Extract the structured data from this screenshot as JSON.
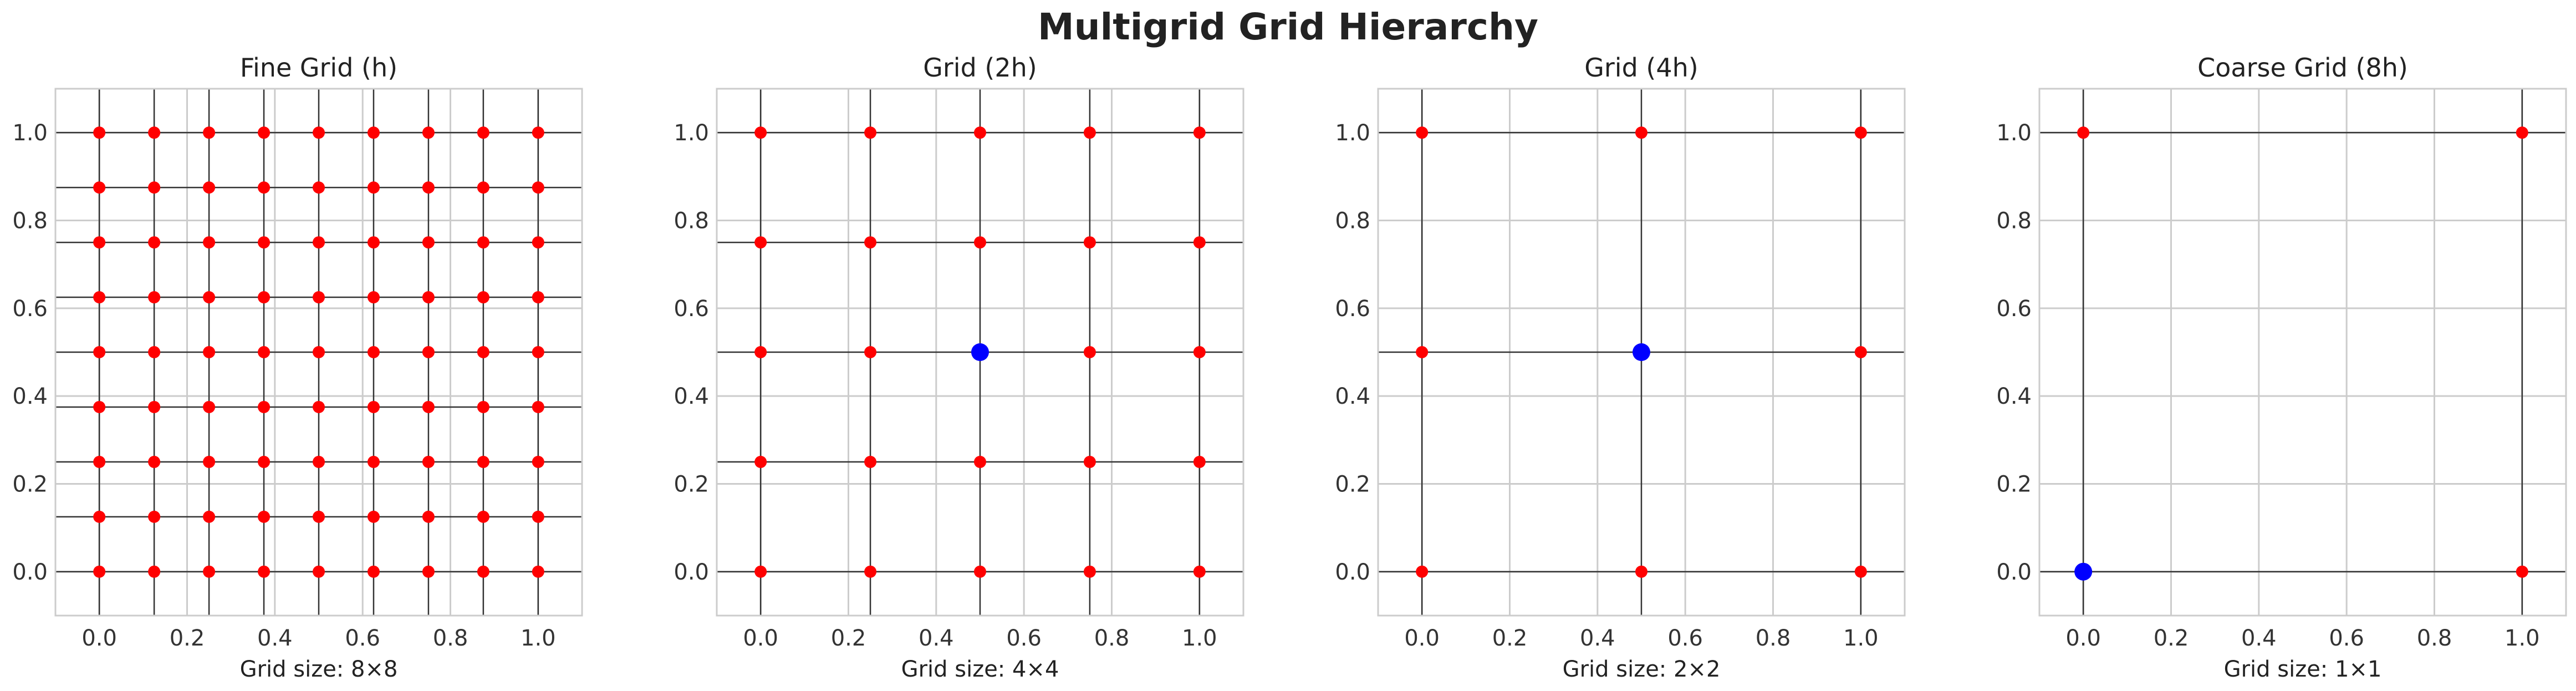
{
  "title": "Multigrid Grid Hierarchy",
  "colors": {
    "fine_point": "#ff0000",
    "coarse_point": "#0000ff",
    "grid_line": "#333333",
    "background_grid": "#cccccc",
    "frame": "#cccccc"
  },
  "chart_data": [
    {
      "type": "scatter",
      "title": "Fine Grid (h)",
      "xlabel": "Grid size: 8×8",
      "ylabel": "",
      "xlim": [
        -0.1,
        1.1
      ],
      "ylim": [
        -0.1,
        1.1
      ],
      "xticks": [
        "0.0",
        "0.2",
        "0.4",
        "0.6",
        "0.8",
        "1.0"
      ],
      "yticks": [
        "0.0",
        "0.2",
        "0.4",
        "0.6",
        "0.8",
        "1.0"
      ],
      "grid": true,
      "grid_coords": [
        0,
        0.125,
        0.25,
        0.375,
        0.5,
        0.625,
        0.75,
        0.875,
        1.0
      ],
      "highlight_points": []
    },
    {
      "type": "scatter",
      "title": "Grid (2h)",
      "xlabel": "Grid size: 4×4",
      "ylabel": "",
      "xlim": [
        -0.1,
        1.1
      ],
      "ylim": [
        -0.1,
        1.1
      ],
      "xticks": [
        "0.0",
        "0.2",
        "0.4",
        "0.6",
        "0.8",
        "1.0"
      ],
      "yticks": [
        "0.0",
        "0.2",
        "0.4",
        "0.6",
        "0.8",
        "1.0"
      ],
      "grid": true,
      "grid_coords": [
        0,
        0.25,
        0.5,
        0.75,
        1.0
      ],
      "highlight_points": [
        [
          0.5,
          0.5
        ]
      ]
    },
    {
      "type": "scatter",
      "title": "Grid (4h)",
      "xlabel": "Grid size: 2×2",
      "ylabel": "",
      "xlim": [
        -0.1,
        1.1
      ],
      "ylim": [
        -0.1,
        1.1
      ],
      "xticks": [
        "0.0",
        "0.2",
        "0.4",
        "0.6",
        "0.8",
        "1.0"
      ],
      "yticks": [
        "0.0",
        "0.2",
        "0.4",
        "0.6",
        "0.8",
        "1.0"
      ],
      "grid": true,
      "grid_coords": [
        0,
        0.5,
        1.0
      ],
      "highlight_points": [
        [
          0.5,
          0.5
        ]
      ]
    },
    {
      "type": "scatter",
      "title": "Coarse Grid (8h)",
      "xlabel": "Grid size: 1×1",
      "ylabel": "",
      "xlim": [
        -0.1,
        1.1
      ],
      "ylim": [
        -0.1,
        1.1
      ],
      "xticks": [
        "0.0",
        "0.2",
        "0.4",
        "0.6",
        "0.8",
        "1.0"
      ],
      "yticks": [
        "0.0",
        "0.2",
        "0.4",
        "0.6",
        "0.8",
        "1.0"
      ],
      "grid": true,
      "grid_coords": [
        0,
        1.0
      ],
      "highlight_points": [
        [
          0,
          0
        ]
      ]
    }
  ]
}
